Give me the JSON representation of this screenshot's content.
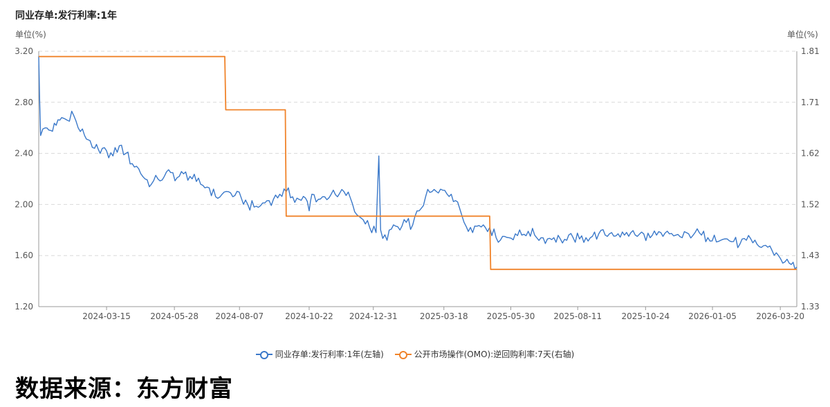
{
  "title": "同业存单:发行利率:1年",
  "unit_left": "单位(%)",
  "unit_right": "单位(%)",
  "source": "数据来源：东方财富",
  "colors": {
    "series1": "#3a78c9",
    "series2": "#f0832a",
    "grid": "#d9d9d9",
    "axis": "#999999"
  },
  "chart_data": {
    "type": "line",
    "title": "同业存单:发行利率:1年",
    "x_tick_labels": [
      "2024-03-15",
      "2024-05-28",
      "2024-08-07",
      "2024-10-22",
      "2024-12-31",
      "2025-03-18",
      "2025-05-30",
      "2025-08-11",
      "2025-10-24",
      "2026-01-05",
      "2026-03-20"
    ],
    "x_range": [
      "2024-01-01",
      "2026-04-07"
    ],
    "y_left": {
      "ticks": [
        "1.20",
        "1.60",
        "2.00",
        "2.40",
        "2.80",
        "3.20"
      ],
      "range": [
        1.2,
        3.2
      ]
    },
    "y_right": {
      "ticks": [
        "1.33",
        "1.43",
        "1.52",
        "1.62",
        "1.71",
        "1.81"
      ],
      "range": [
        1.33,
        1.81
      ]
    },
    "grid": true,
    "legend_position": "bottom",
    "series": [
      {
        "name": "同业存单:发行利率:1年(左轴)",
        "axis": "left",
        "points": [
          [
            "2024-01-01",
            3.16
          ],
          [
            "2024-01-03",
            2.54
          ],
          [
            "2024-01-08",
            2.6
          ],
          [
            "2024-01-14",
            2.58
          ],
          [
            "2024-01-20",
            2.62
          ],
          [
            "2024-01-26",
            2.68
          ],
          [
            "2024-02-01",
            2.66
          ],
          [
            "2024-02-06",
            2.73
          ],
          [
            "2024-02-13",
            2.6
          ],
          [
            "2024-02-20",
            2.54
          ],
          [
            "2024-02-26",
            2.5
          ],
          [
            "2024-03-02",
            2.44
          ],
          [
            "2024-03-08",
            2.4
          ],
          [
            "2024-03-15",
            2.42
          ],
          [
            "2024-03-22",
            2.38
          ],
          [
            "2024-03-29",
            2.46
          ],
          [
            "2024-04-05",
            2.4
          ],
          [
            "2024-04-12",
            2.32
          ],
          [
            "2024-04-19",
            2.28
          ],
          [
            "2024-04-26",
            2.2
          ],
          [
            "2024-05-03",
            2.16
          ],
          [
            "2024-05-10",
            2.2
          ],
          [
            "2024-05-17",
            2.22
          ],
          [
            "2024-05-24",
            2.25
          ],
          [
            "2024-05-31",
            2.21
          ],
          [
            "2024-06-07",
            2.24
          ],
          [
            "2024-06-14",
            2.22
          ],
          [
            "2024-06-21",
            2.18
          ],
          [
            "2024-06-28",
            2.15
          ],
          [
            "2024-07-05",
            2.13
          ],
          [
            "2024-07-12",
            2.06
          ],
          [
            "2024-07-19",
            2.08
          ],
          [
            "2024-07-26",
            2.1
          ],
          [
            "2024-08-02",
            2.07
          ],
          [
            "2024-08-09",
            2.05
          ],
          [
            "2024-08-16",
            2.0
          ],
          [
            "2024-08-23",
            1.98
          ],
          [
            "2024-08-30",
            1.99
          ],
          [
            "2024-09-06",
            2.03
          ],
          [
            "2024-09-13",
            2.04
          ],
          [
            "2024-09-20",
            2.08
          ],
          [
            "2024-09-27",
            2.1
          ],
          [
            "2024-10-04",
            2.06
          ],
          [
            "2024-10-11",
            2.04
          ],
          [
            "2024-10-18",
            2.05
          ],
          [
            "2024-10-22",
            1.95
          ],
          [
            "2024-10-25",
            2.08
          ],
          [
            "2024-11-01",
            2.04
          ],
          [
            "2024-11-08",
            2.06
          ],
          [
            "2024-11-15",
            2.08
          ],
          [
            "2024-11-22",
            2.06
          ],
          [
            "2024-11-29",
            2.1
          ],
          [
            "2024-12-06",
            2.05
          ],
          [
            "2024-12-13",
            1.92
          ],
          [
            "2024-12-20",
            1.88
          ],
          [
            "2024-12-27",
            1.82
          ],
          [
            "2025-01-03",
            1.78
          ],
          [
            "2025-01-06",
            2.38
          ],
          [
            "2025-01-08",
            1.8
          ],
          [
            "2025-01-15",
            1.72
          ],
          [
            "2025-01-22",
            1.84
          ],
          [
            "2025-01-29",
            1.8
          ],
          [
            "2025-02-05",
            1.86
          ],
          [
            "2025-02-12",
            1.84
          ],
          [
            "2025-02-19",
            1.95
          ],
          [
            "2025-02-26",
            2.06
          ],
          [
            "2025-03-05",
            2.1
          ],
          [
            "2025-03-12",
            2.09
          ],
          [
            "2025-03-19",
            2.11
          ],
          [
            "2025-03-26",
            2.08
          ],
          [
            "2025-04-02",
            2.02
          ],
          [
            "2025-04-09",
            1.86
          ],
          [
            "2025-04-16",
            1.82
          ],
          [
            "2025-04-23",
            1.83
          ],
          [
            "2025-04-30",
            1.84
          ],
          [
            "2025-05-07",
            1.82
          ],
          [
            "2025-05-14",
            1.74
          ],
          [
            "2025-05-21",
            1.75
          ],
          [
            "2025-05-28",
            1.74
          ],
          [
            "2025-06-04",
            1.77
          ],
          [
            "2025-06-11",
            1.76
          ],
          [
            "2025-06-18",
            1.79
          ],
          [
            "2025-06-25",
            1.76
          ],
          [
            "2025-07-02",
            1.74
          ],
          [
            "2025-07-09",
            1.73
          ],
          [
            "2025-07-16",
            1.74
          ],
          [
            "2025-07-23",
            1.73
          ],
          [
            "2025-07-30",
            1.72
          ],
          [
            "2025-08-06",
            1.74
          ],
          [
            "2025-08-13",
            1.73
          ],
          [
            "2025-08-20",
            1.74
          ],
          [
            "2025-08-27",
            1.75
          ],
          [
            "2025-09-03",
            1.77
          ],
          [
            "2025-09-10",
            1.76
          ],
          [
            "2025-09-17",
            1.78
          ],
          [
            "2025-09-24",
            1.77
          ],
          [
            "2025-10-01",
            1.76
          ],
          [
            "2025-10-08",
            1.78
          ],
          [
            "2025-10-15",
            1.75
          ],
          [
            "2025-10-22",
            1.77
          ],
          [
            "2025-10-29",
            1.74
          ],
          [
            "2025-11-05",
            1.76
          ],
          [
            "2025-11-12",
            1.75
          ],
          [
            "2025-11-19",
            1.77
          ],
          [
            "2025-11-26",
            1.76
          ],
          [
            "2025-12-03",
            1.74
          ],
          [
            "2025-12-10",
            1.77
          ],
          [
            "2025-12-17",
            1.78
          ],
          [
            "2025-12-24",
            1.76
          ],
          [
            "2025-12-31",
            1.74
          ],
          [
            "2026-01-07",
            1.76
          ],
          [
            "2026-01-14",
            1.72
          ],
          [
            "2026-01-21",
            1.73
          ],
          [
            "2026-01-28",
            1.71
          ],
          [
            "2026-02-04",
            1.69
          ],
          [
            "2026-02-11",
            1.72
          ],
          [
            "2026-02-18",
            1.7
          ],
          [
            "2026-02-25",
            1.67
          ],
          [
            "2026-03-04",
            1.68
          ],
          [
            "2026-03-11",
            1.64
          ],
          [
            "2026-03-18",
            1.6
          ],
          [
            "2026-03-25",
            1.55
          ],
          [
            "2026-04-01",
            1.53
          ],
          [
            "2026-04-07",
            1.51
          ]
        ]
      },
      {
        "name": "公开市场操作(OMO):逆回购利率:7天(右轴)",
        "axis": "right",
        "points": [
          [
            "2024-01-01",
            1.8
          ],
          [
            "2024-07-22",
            1.8
          ],
          [
            "2024-07-23",
            1.7
          ],
          [
            "2024-09-26",
            1.7
          ],
          [
            "2024-09-27",
            1.5
          ],
          [
            "2025-05-07",
            1.5
          ],
          [
            "2025-05-08",
            1.4
          ],
          [
            "2026-04-07",
            1.4
          ]
        ]
      }
    ]
  }
}
